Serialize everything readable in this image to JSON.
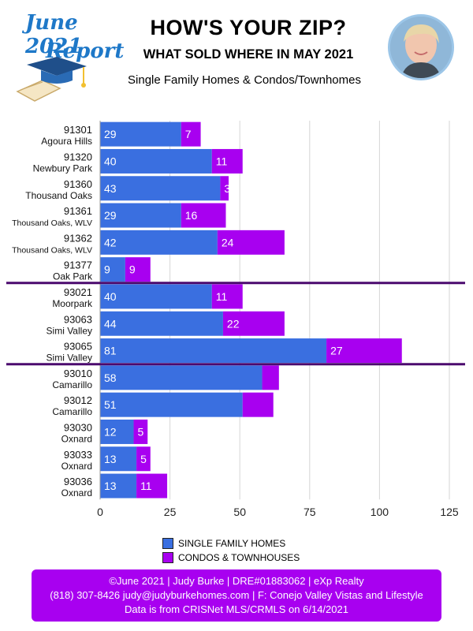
{
  "badge": {
    "line1": "June 2021",
    "line2": "Report"
  },
  "header": {
    "title": "HOW'S YOUR ZIP?",
    "subtitle": "WHAT SOLD WHERE IN MAY 2021",
    "subline": "Single Family Homes & Condos/Townhomes"
  },
  "chart_data": {
    "type": "bar",
    "orientation": "horizontal",
    "stacked": true,
    "categories": [
      {
        "zip": "91301",
        "area": "Agoura Hills"
      },
      {
        "zip": "91320",
        "area": "Newbury Park"
      },
      {
        "zip": "91360",
        "area": "Thousand Oaks"
      },
      {
        "zip": "91361",
        "area": "Thousand Oaks, WLV"
      },
      {
        "zip": "91362",
        "area": "Thousand Oaks, WLV"
      },
      {
        "zip": "91377",
        "area": "Oak Park"
      },
      {
        "zip": "93021",
        "area": "Moorpark"
      },
      {
        "zip": "93063",
        "area": "Simi Valley"
      },
      {
        "zip": "93065",
        "area": "Simi Valley"
      },
      {
        "zip": "93010",
        "area": "Camarillo"
      },
      {
        "zip": "93012",
        "area": "Camarillo"
      },
      {
        "zip": "93030",
        "area": "Oxnard"
      },
      {
        "zip": "93033",
        "area": "Oxnard"
      },
      {
        "zip": "93036",
        "area": "Oxnard"
      }
    ],
    "series": [
      {
        "name": "SINGLE FAMILY HOMES",
        "color": "#3a6fe0",
        "values": [
          29,
          40,
          43,
          29,
          42,
          9,
          40,
          44,
          81,
          58,
          51,
          12,
          13,
          13
        ],
        "labels": [
          "29",
          "40",
          "43",
          "29",
          "42",
          "9",
          "40",
          "44",
          "81",
          "58",
          "51",
          "12",
          "13",
          "13"
        ]
      },
      {
        "name": "CONDOS & TOWNHOUSES",
        "color": "#a800f0",
        "values": [
          7,
          11,
          3,
          16,
          24,
          9,
          11,
          22,
          27,
          6,
          11,
          5,
          5,
          11
        ],
        "labels": [
          "7",
          "11",
          "3",
          "16",
          "24",
          "9",
          "11",
          "22",
          "27",
          "",
          "",
          "5",
          "5",
          "11"
        ]
      }
    ],
    "xlim": [
      0,
      125
    ],
    "xticks": [
      "0",
      "25",
      "50",
      "75",
      "100",
      "125"
    ],
    "group_separators_after_index": [
      5,
      8
    ],
    "grid": true,
    "legend_position": "bottom"
  },
  "footer": {
    "line1": "©June 2021  |  Judy Burke  |  DRE#01883062  |  eXp Realty",
    "line2": "(818) 307-8426  judy@judyburkehomes.com | F: Conejo Valley Vistas and Lifestyle",
    "line3": "Data is from CRISNet MLS/CRMLS on 6/14/2021"
  },
  "colors": {
    "accent": "#a800f0",
    "sfh": "#3a6fe0",
    "separator": "#4b0a6e",
    "badge_text": "#1e78c8"
  }
}
